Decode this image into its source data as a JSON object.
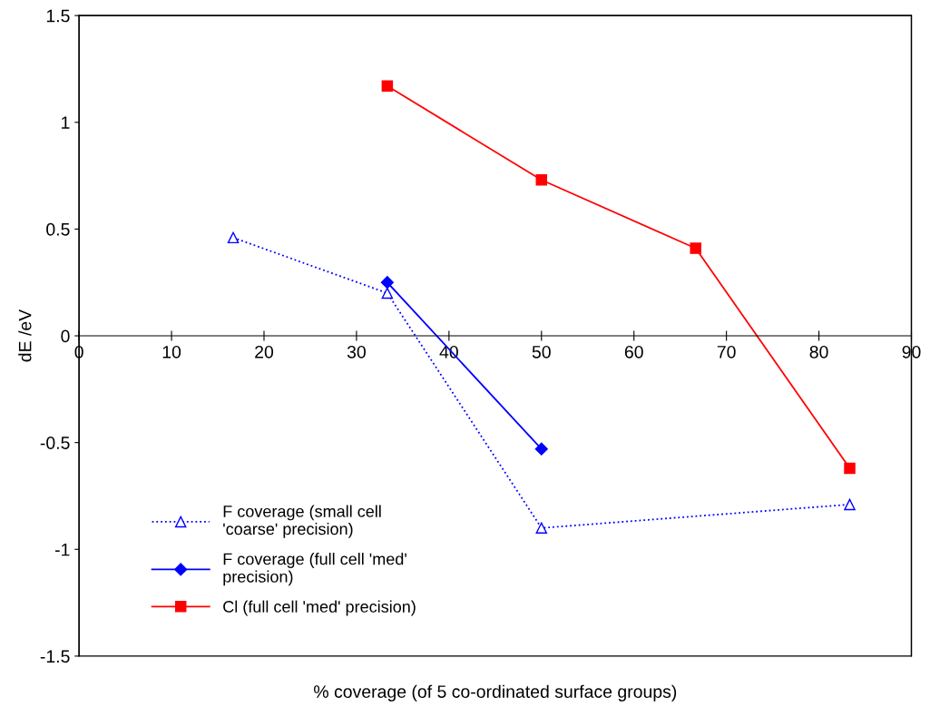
{
  "chart_data": {
    "type": "line",
    "xlabel": "% coverage (of 5 co-ordinated surface groups)",
    "ylabel": "dE /eV",
    "xlim": [
      0,
      90
    ],
    "xticks": [
      0,
      10,
      20,
      30,
      40,
      50,
      60,
      70,
      80,
      90
    ],
    "ylim": [
      -1.5,
      1.5
    ],
    "yticks": [
      -1.5,
      -1,
      -0.5,
      0,
      0.5,
      1,
      1.5
    ],
    "grid": false,
    "legend": "bottom left",
    "series": [
      {
        "name": "F coverage (small cell\n'coarse' precision)",
        "color": "#0000ff",
        "marker": "triangle",
        "line_style": "dotted",
        "x": [
          16.67,
          33.33,
          50,
          83.33
        ],
        "values": [
          0.46,
          0.2,
          -0.9,
          -0.79
        ]
      },
      {
        "name": "F coverage (full cell 'med'\nprecision)",
        "color": "#0000ff",
        "marker": "diamond",
        "line_style": "solid",
        "x": [
          33.33,
          50
        ],
        "values": [
          0.25,
          -0.53
        ]
      },
      {
        "name": "Cl (full cell 'med' precision)",
        "color": "#ff0000",
        "marker": "square",
        "line_style": "solid",
        "x": [
          33.33,
          50,
          66.67,
          83.33
        ],
        "values": [
          1.17,
          0.73,
          0.41,
          -0.62
        ]
      }
    ]
  }
}
